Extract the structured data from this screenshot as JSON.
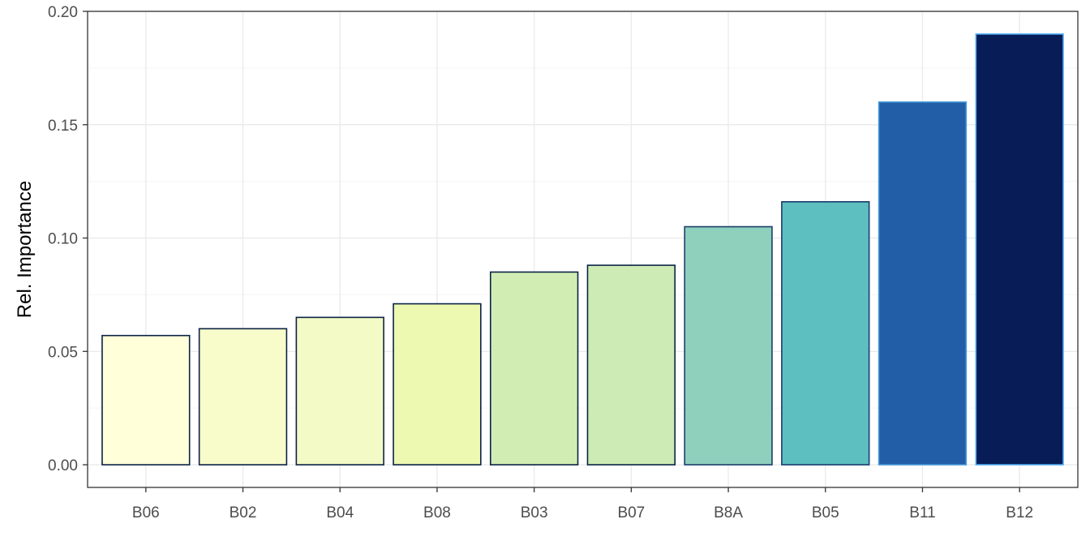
{
  "chart_data": {
    "type": "bar",
    "title": "",
    "xlabel": "",
    "ylabel": "Rel. Importance",
    "categories": [
      "B06",
      "B02",
      "B04",
      "B08",
      "B03",
      "B07",
      "B8A",
      "B05",
      "B11",
      "B12"
    ],
    "values": [
      0.057,
      0.06,
      0.065,
      0.071,
      0.085,
      0.088,
      0.105,
      0.116,
      0.16,
      0.19
    ],
    "colors": [
      "#ffffd9",
      "#f8fccb",
      "#f3fac5",
      "#edf8b1",
      "#d2edb3",
      "#cdebb4",
      "#8ed0bb",
      "#5ebfc1",
      "#225ea8",
      "#081d58"
    ],
    "outline_colors": [
      "#0b2345",
      "#0b2345",
      "#0b2345",
      "#0b2345",
      "#0b2345",
      "#0b2345",
      "#1a3d6b",
      "#1a3d6b",
      "#4a9bd8",
      "#56b1f7"
    ],
    "ylim": [
      -0.01,
      0.2
    ],
    "yticks": [
      0.0,
      0.05,
      0.1,
      0.15,
      0.2
    ],
    "ytick_labels": [
      "0.00",
      "0.05",
      "0.10",
      "0.15",
      "0.20"
    ],
    "grid": true,
    "legend": "none"
  }
}
